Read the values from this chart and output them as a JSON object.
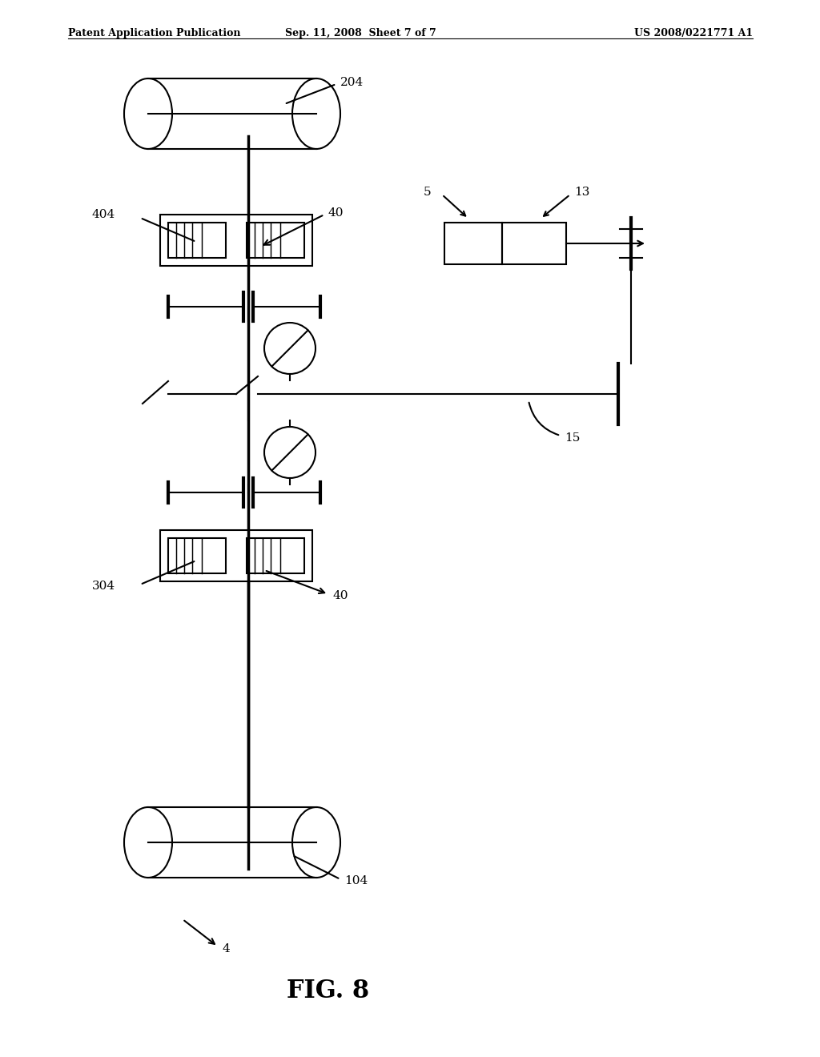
{
  "header_left": "Patent Application Publication",
  "header_mid": "Sep. 11, 2008  Sheet 7 of 7",
  "header_right": "US 2008/0221771 A1",
  "figure_label": "FIG. 8",
  "bg_color": "#ffffff",
  "line_color": "#000000",
  "lw": 1.5
}
